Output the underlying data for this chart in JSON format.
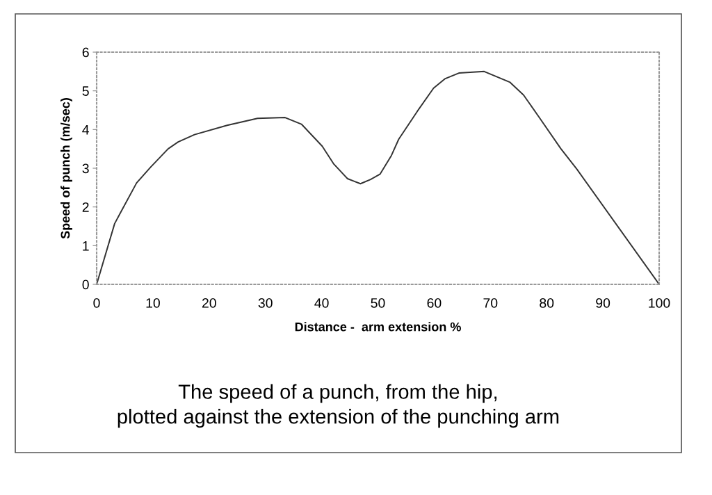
{
  "chart_data": {
    "type": "line",
    "xlabel": "Distance -  arm extension %",
    "ylabel": "Speed of punch (m/sec)",
    "annotations": [
      "The speed of a punch, from the hip,\nplotted against the extension of the punching arm"
    ],
    "series": [
      {
        "color": "#333333",
        "x": [
          0,
          3.2,
          4.2,
          7.1,
          9.6,
          12.7,
          14.5,
          17.4,
          23.2,
          28.6,
          33.5,
          36.4,
          40.1,
          42.1,
          44.6,
          46.9,
          48.7,
          50.4,
          52.4,
          53.7,
          57.0,
          59.9,
          61.9,
          64.4,
          68.9,
          73.5,
          75.9,
          78.8,
          82.5,
          85.4,
          100
        ],
        "values": [
          0,
          1.57,
          1.84,
          2.62,
          3.03,
          3.5,
          3.68,
          3.87,
          4.11,
          4.29,
          4.31,
          4.14,
          3.57,
          3.12,
          2.73,
          2.6,
          2.71,
          2.85,
          3.33,
          3.75,
          4.47,
          5.07,
          5.31,
          5.46,
          5.5,
          5.22,
          4.89,
          4.29,
          3.51,
          2.97,
          0
        ]
      }
    ],
    "xlim": [
      0,
      100
    ],
    "xticks": [
      0,
      10,
      20,
      30,
      40,
      50,
      60,
      70,
      80,
      90,
      100
    ],
    "ylim": [
      0,
      6
    ],
    "yticks": [
      0,
      1,
      2,
      3,
      4,
      5,
      6
    ],
    "grid": false,
    "legend": false,
    "marker": "none",
    "line_style": "solid"
  }
}
